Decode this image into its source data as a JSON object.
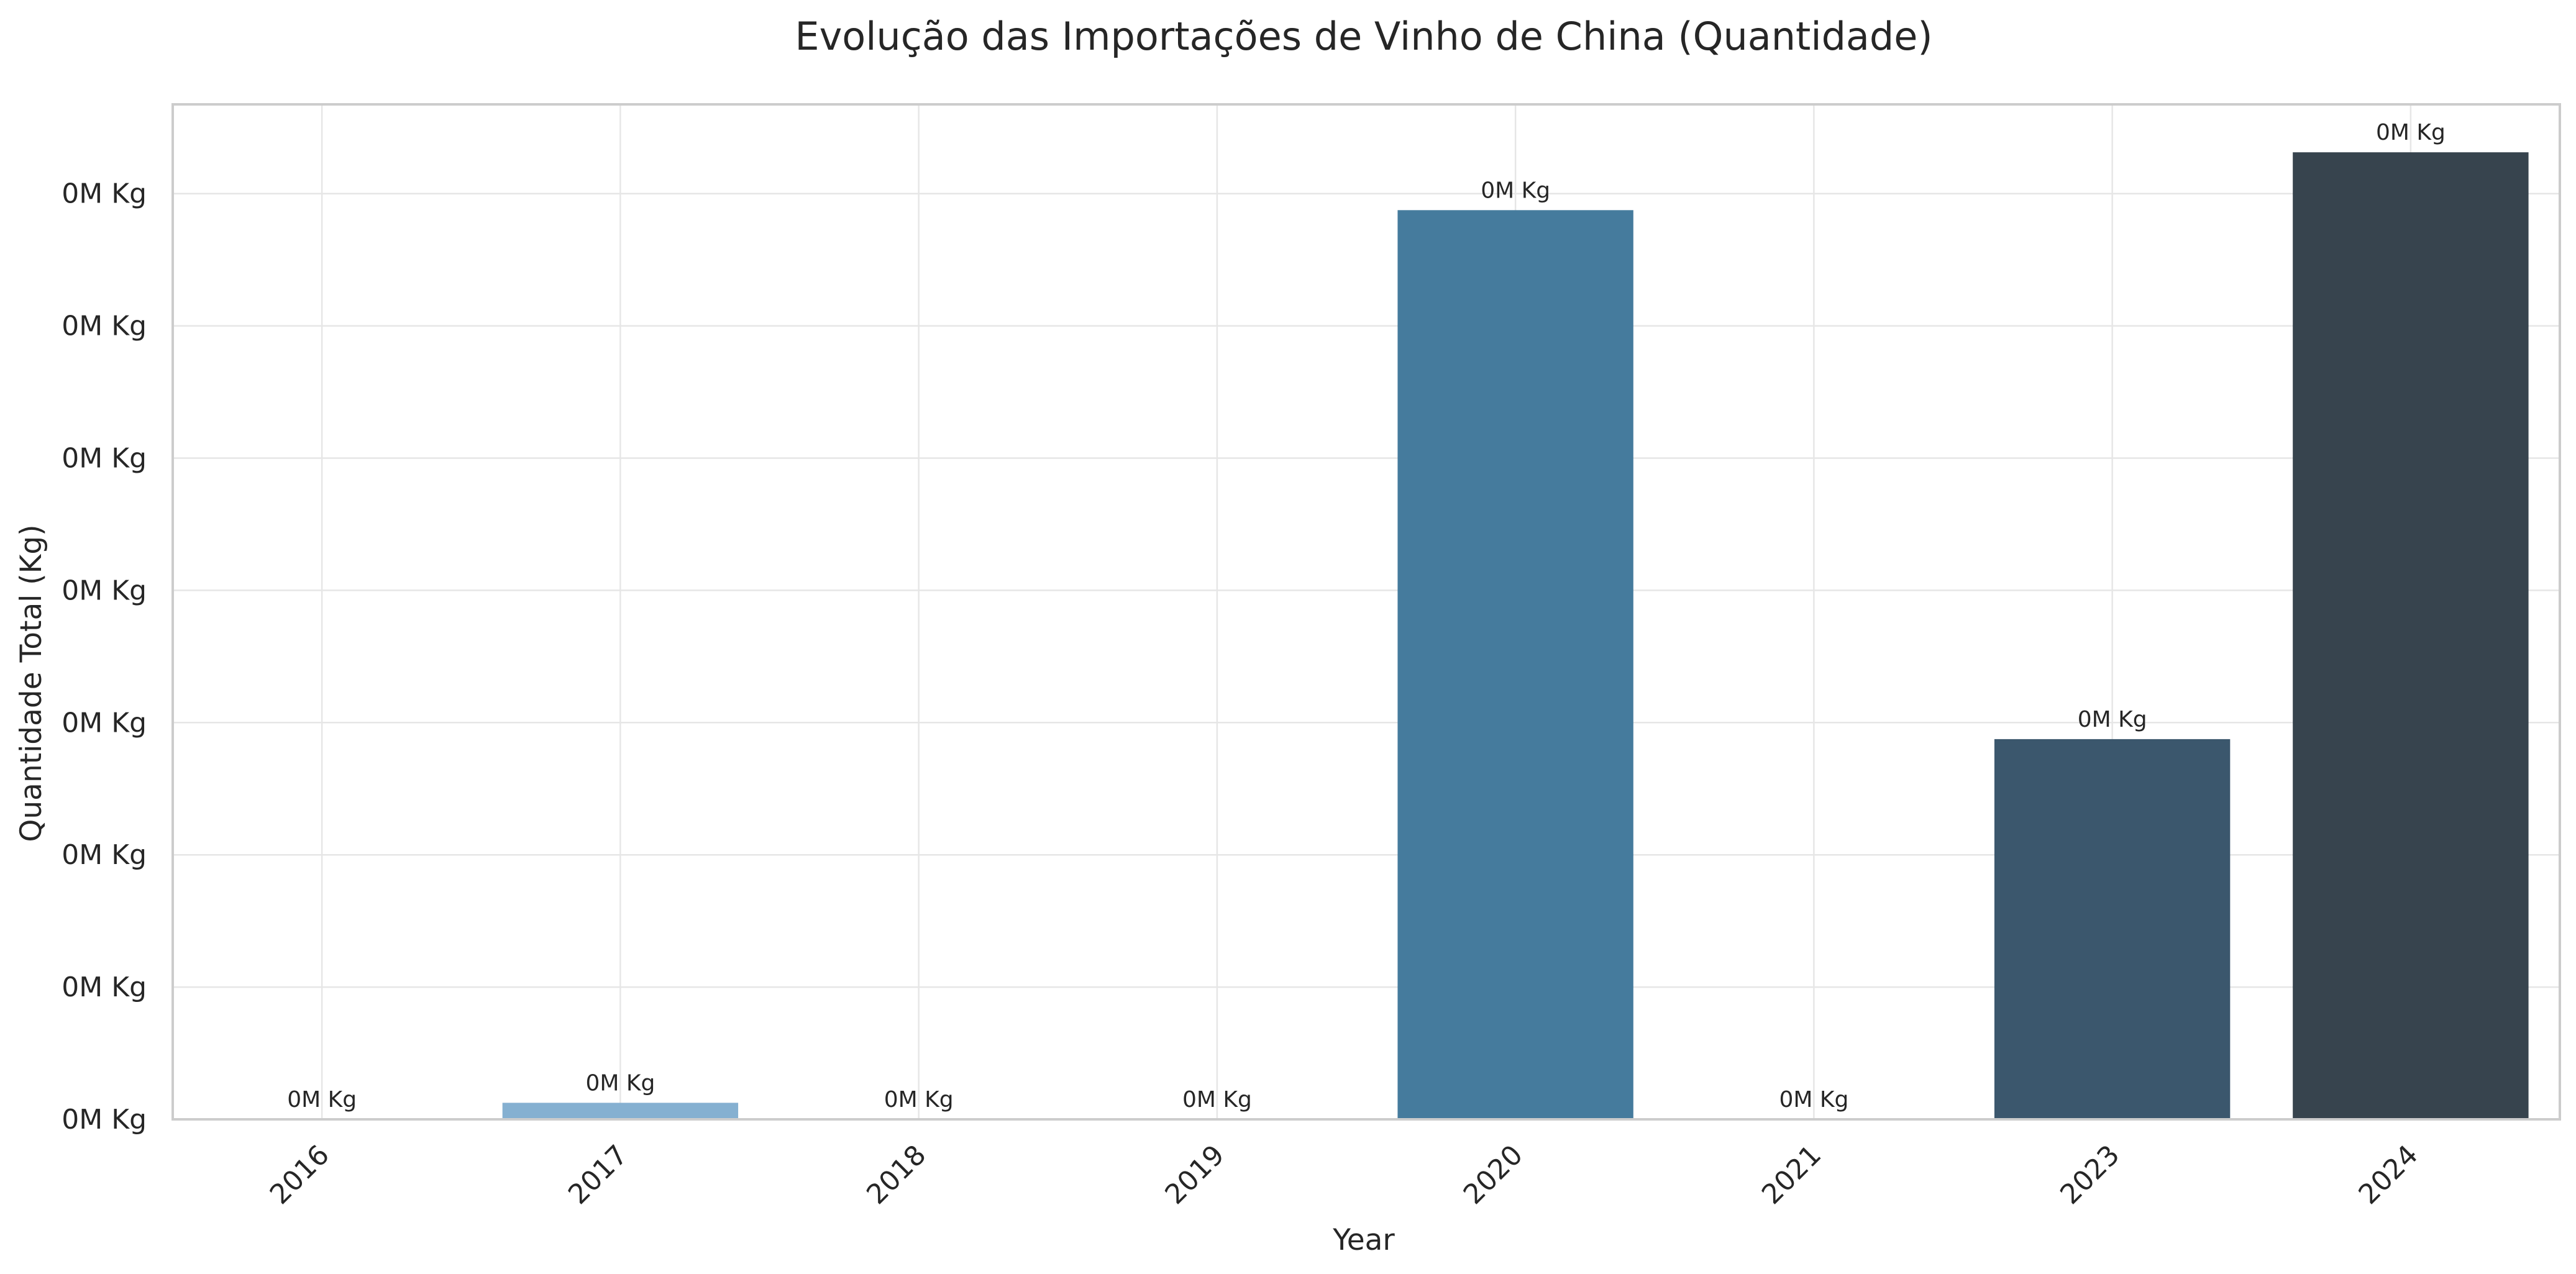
{
  "chart_data": {
    "type": "bar",
    "title": "Evolução das Importações de Vinho de China (Quantidade)",
    "xlabel": "Year",
    "ylabel": "Quantidade Total (Kg)",
    "categories": [
      "2016",
      "2017",
      "2018",
      "2019",
      "2020",
      "2021",
      "2023",
      "2024"
    ],
    "values": [
      0,
      5000,
      0,
      0,
      275000,
      0,
      115000,
      292500
    ],
    "data_labels": [
      "0M Kg",
      "0M Kg",
      "0M Kg",
      "0M Kg",
      "0M Kg",
      "0M Kg",
      "0M Kg",
      "0M Kg"
    ],
    "colors": [
      "#9ebfdc",
      "#85b0d1",
      "#5f95bf",
      "#4a85b0",
      "#457b9d",
      "#3f6a86",
      "#3b576d",
      "#37444e"
    ],
    "y_ticks": [
      0,
      40000,
      80000,
      120000,
      160000,
      200000,
      240000,
      280000
    ],
    "y_tick_labels": [
      "0M Kg",
      "0M Kg",
      "0M Kg",
      "0M Kg",
      "0M Kg",
      "0M Kg",
      "0M Kg",
      "0M Kg"
    ],
    "ylim": [
      0,
      307000
    ],
    "grid": true,
    "x_tick_rotation": 45
  }
}
